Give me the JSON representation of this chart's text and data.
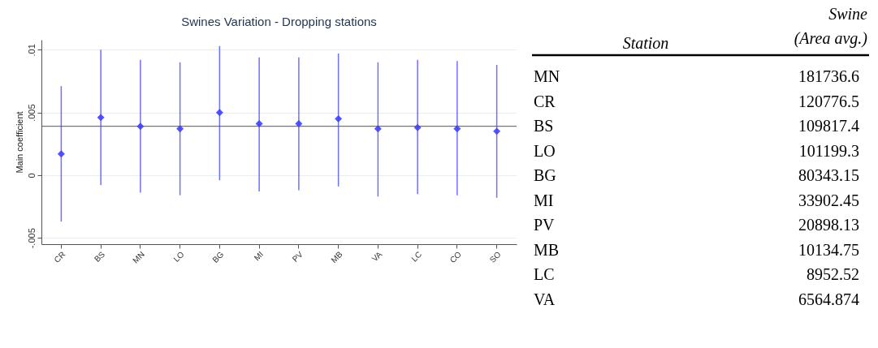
{
  "chart_data": [
    {
      "type": "scatter",
      "title": "Swines Variation - Dropping stations",
      "ylabel": "Main coefficient",
      "categories": [
        "CR",
        "BS",
        "MN",
        "LO",
        "BG",
        "MI",
        "PV",
        "MB",
        "VA",
        "LC",
        "CO",
        "SO"
      ],
      "series": [
        {
          "color": "#4040ff",
          "values": [
            0.0017,
            0.0046,
            0.0039,
            0.0037,
            0.005,
            0.0041,
            0.0041,
            0.0045,
            0.0037,
            0.0038,
            0.0037,
            0.0035
          ],
          "errors": [
            [
              -0.0037,
              0.0071
            ],
            [
              -0.0008,
              0.01
            ],
            [
              -0.0014,
              0.0092
            ],
            [
              -0.0016,
              0.009
            ],
            [
              -0.0004,
              0.0103
            ],
            [
              -0.0013,
              0.0094
            ],
            [
              -0.0012,
              0.0094
            ],
            [
              -0.0009,
              0.0097
            ],
            [
              -0.0017,
              0.009
            ],
            [
              -0.0015,
              0.0092
            ],
            [
              -0.0016,
              0.0091
            ],
            [
              -0.0018,
              0.0088
            ]
          ]
        }
      ],
      "ylim": [
        -0.0055,
        0.0108
      ],
      "yticks": [
        {
          "value": -0.005,
          "label": "-.005"
        },
        0,
        {
          "value": 0.005,
          "label": ".005"
        },
        {
          "value": 0.01,
          "label": ".01"
        }
      ],
      "ref_lines": [
        {
          "axis": "y",
          "value": 0.0039,
          "color": "#555555"
        }
      ],
      "grid": "y",
      "marker": "diamond",
      "legend": false
    },
    {
      "type": "other",
      "xlabel": "Station",
      "ylabel": "Swine\n(Area avg.)",
      "categories": [
        "MN",
        "CR",
        "BS",
        "LO",
        "BG",
        "MI",
        "PV",
        "MB",
        "LC",
        "VA"
      ],
      "values": [
        181736.6,
        120776.5,
        109817.4,
        101199.3,
        80343.15,
        33902.45,
        20898.13,
        10134.75,
        8952.52,
        6564.874
      ],
      "data_labels": true
    }
  ]
}
